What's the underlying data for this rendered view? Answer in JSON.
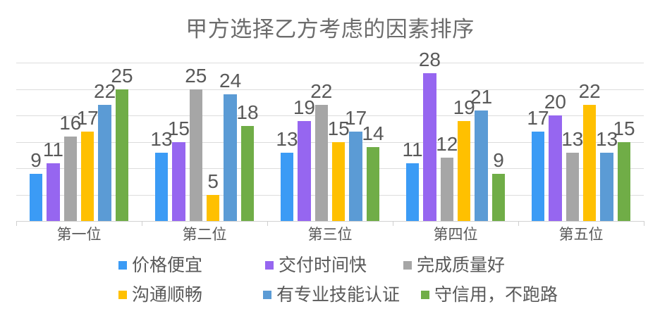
{
  "title": "甲方选择乙方考虑的因素排序",
  "chart_data": {
    "type": "bar",
    "title": "甲方选择乙方考虑的因素排序",
    "categories": [
      "第一位",
      "第二位",
      "第三位",
      "第四位",
      "第五位"
    ],
    "series": [
      {
        "name": "价格便宜",
        "color": "#3b9bf5",
        "values": [
          9,
          13,
          13,
          11,
          17
        ]
      },
      {
        "name": "交付时间快",
        "color": "#9666f0",
        "values": [
          11,
          15,
          19,
          28,
          20
        ]
      },
      {
        "name": "完成质量好",
        "color": "#a6a6a6",
        "values": [
          16,
          25,
          22,
          12,
          13
        ]
      },
      {
        "name": "沟通顺畅",
        "color": "#ffc000",
        "values": [
          17,
          5,
          15,
          19,
          22
        ]
      },
      {
        "name": "有专业技能认证",
        "color": "#5b9bd5",
        "values": [
          22,
          24,
          17,
          21,
          13
        ]
      },
      {
        "name": "守信用，不跑路",
        "color": "#70ad47",
        "values": [
          25,
          18,
          14,
          9,
          15
        ]
      }
    ],
    "xlabel": "",
    "ylabel": "",
    "ylim": [
      0,
      30
    ],
    "grid_step": 5,
    "grid": true,
    "y_axis_labels_visible": false,
    "data_labels": true,
    "legend_position": "bottom"
  },
  "colors": {
    "background": "#ffffff",
    "gridline": "#dcdcdc",
    "axis": "#d2d2d2",
    "title_text": "#6c6c6c",
    "label_text": "#595959"
  }
}
